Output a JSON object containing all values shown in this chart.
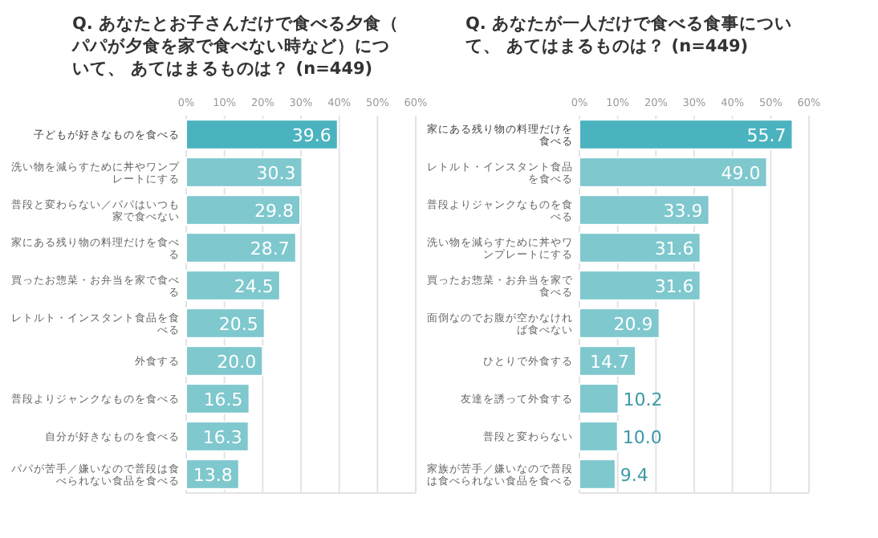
{
  "chart_data": [
    {
      "type": "bar",
      "orientation": "horizontal",
      "title": "Q. あなたとお子さんだけで食べる夕食（パパが夕食を家で食べない時など）について、 あてはまるものは？ (n=449)",
      "categories": [
        "子どもが好きなものを食べる",
        "洗い物を減らすために丼やワンプレートにする",
        "普段と変わらない／パパはいつも家で食べない",
        "家にある残り物の料理だけを食べる",
        "買ったお惣菜・お弁当を家で食べる",
        "レトルト・インスタント食品を食べる",
        "外食する",
        "普段よりジャンクなものを食べる",
        "自分が好きなものを食べる",
        "パパが苦手／嫌いなので普段は食べられない食品を食べる"
      ],
      "values": [
        39.6,
        30.3,
        29.8,
        28.7,
        24.5,
        20.5,
        20.0,
        16.5,
        16.3,
        13.8
      ],
      "value_labels": [
        "39.6",
        "30.3",
        "29.8",
        "28.7",
        "24.5",
        "20.5",
        "20.0",
        "16.5",
        "16.3",
        "13.8"
      ],
      "colors": [
        "#4ab3bf",
        "#7ec8ce",
        "#7ec8ce",
        "#7ec8ce",
        "#7ec8ce",
        "#7ec8ce",
        "#7ec8ce",
        "#7ec8ce",
        "#7ec8ce",
        "#7ec8ce"
      ],
      "xlim": [
        0,
        60
      ],
      "xticks": [
        {
          "value": 0,
          "label": "0%"
        },
        {
          "value": 10,
          "label": "10%"
        },
        {
          "value": 20,
          "label": "20%"
        },
        {
          "value": 30,
          "label": "30%"
        },
        {
          "value": 40,
          "label": "40%"
        },
        {
          "value": 50,
          "label": "50%"
        },
        {
          "value": 60,
          "label": "60%"
        }
      ],
      "grid": "x"
    },
    {
      "type": "bar",
      "orientation": "horizontal",
      "title": "Q. あなたが一人だけで食べる食事について、 あてはまるものは？ (n=449)",
      "categories": [
        "家にある残り物の料理だけを食べる",
        "レトルト・インスタント食品を食べる",
        "普段よりジャンクなものを食べる",
        "洗い物を減らすために丼やワンプレートにする",
        "買ったお惣菜・お弁当を家で食べる",
        "面倒なのでお腹が空かなければ食べない",
        "ひとりで外食する",
        "友達を誘って外食する",
        "普段と変わらない",
        "家族が苦手／嫌いなので普段は食べられない食品を食べる"
      ],
      "values": [
        55.7,
        49.0,
        33.9,
        31.6,
        31.6,
        20.9,
        14.7,
        10.2,
        10.0,
        9.4
      ],
      "value_labels": [
        "55.7",
        "49.0",
        "33.9",
        "31.6",
        "31.6",
        "20.9",
        "14.7",
        "10.2",
        "10.0",
        "9.4"
      ],
      "colors": [
        "#4ab3bf",
        "#7ec8ce",
        "#7ec8ce",
        "#7ec8ce",
        "#7ec8ce",
        "#7ec8ce",
        "#7ec8ce",
        "#7ec8ce",
        "#7ec8ce",
        "#7ec8ce"
      ],
      "xlim": [
        0,
        60
      ],
      "xticks": [
        {
          "value": 0,
          "label": "0%"
        },
        {
          "value": 10,
          "label": "10%"
        },
        {
          "value": 20,
          "label": "20%"
        },
        {
          "value": 30,
          "label": "30%"
        },
        {
          "value": 40,
          "label": "40%"
        },
        {
          "value": 50,
          "label": "50%"
        },
        {
          "value": 60,
          "label": "60%"
        }
      ],
      "grid": "x"
    }
  ]
}
